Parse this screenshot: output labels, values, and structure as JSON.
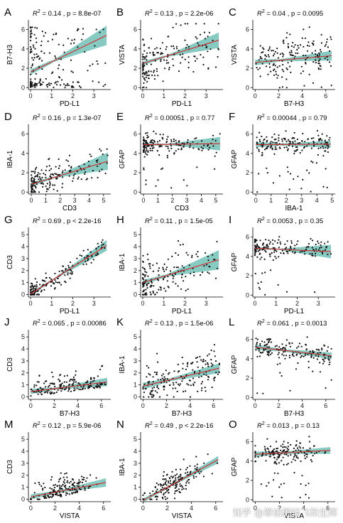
{
  "figure": {
    "fit_color": "#d62728",
    "band_color": "#5fb8ad",
    "point_color": "#111111",
    "watermark": "知乎 @翠柏肥轻飞和生辉"
  },
  "chart_data": [
    {
      "type": "scatter",
      "panel_letter": "A",
      "stat_text": ", p = 8.8e-07",
      "r2": "0.14",
      "xlabel": "PD-L1",
      "ylabel": "B7-H3",
      "xlim": [
        -0.1,
        3.8
      ],
      "ylim": [
        -0.2,
        7.0
      ],
      "xticks": [
        0,
        1,
        2,
        3
      ],
      "yticks": [
        0,
        2,
        4,
        6
      ],
      "fit": {
        "x": [
          0,
          3.6
        ],
        "y": [
          1.6,
          5.4
        ],
        "band_start": 0.2,
        "band_end": 1.0
      },
      "cloud": {
        "n": 170,
        "x_max": 3.6,
        "x_shape": "skew",
        "y_mode": "wide",
        "y_low": 0,
        "y_high": 6.6,
        "seed": 11
      }
    },
    {
      "type": "scatter",
      "panel_letter": "B",
      "stat_text": ", p = 2.2e-06",
      "r2": "0.13",
      "xlabel": "PD-L1",
      "ylabel": "VISTA",
      "xlim": [
        -0.1,
        3.8
      ],
      "ylim": [
        -0.2,
        7.0
      ],
      "xticks": [
        0,
        1,
        2,
        3
      ],
      "yticks": [
        0,
        2,
        4,
        6
      ],
      "fit": {
        "x": [
          0,
          3.6
        ],
        "y": [
          2.5,
          4.9
        ],
        "band_start": 0.15,
        "band_end": 0.8
      },
      "cloud": {
        "n": 170,
        "x_max": 3.6,
        "x_shape": "skew",
        "y_mode": "fit",
        "y_low": 0,
        "y_high": 6.6,
        "sd": 1.2,
        "seed": 23
      }
    },
    {
      "type": "scatter",
      "panel_letter": "C",
      "stat_text": ", p = 0.0095",
      "r2": "0.04",
      "xlabel": "B7-H3",
      "ylabel": "VISTA",
      "xlim": [
        -0.2,
        6.8
      ],
      "ylim": [
        -0.2,
        7.0
      ],
      "xticks": [
        0,
        2,
        4,
        6
      ],
      "yticks": [
        0,
        2,
        4,
        6
      ],
      "fit": {
        "x": [
          0,
          6.5
        ],
        "y": [
          2.6,
          3.3
        ],
        "band_start": 0.2,
        "band_end": 0.5
      },
      "cloud": {
        "n": 170,
        "x_max": 6.5,
        "x_shape": "uniform",
        "y_mode": "fit",
        "y_low": 0,
        "y_high": 6.6,
        "sd": 1.3,
        "seed": 37
      }
    },
    {
      "type": "scatter",
      "panel_letter": "D",
      "stat_text": ", p = 1.3e-07",
      "r2": "0.16",
      "xlabel": "CD3",
      "ylabel": "IBA-1",
      "xlim": [
        -0.2,
        5.5
      ],
      "ylim": [
        -0.2,
        7.0
      ],
      "xticks": [
        0,
        1,
        2,
        3,
        4,
        5
      ],
      "yticks": [
        0,
        2,
        4,
        6
      ],
      "fit": {
        "x": [
          0,
          5.3
        ],
        "y": [
          0.8,
          3.2
        ],
        "band_start": 0.15,
        "band_end": 0.9
      },
      "cloud": {
        "n": 170,
        "x_max": 5.3,
        "x_shape": "skew",
        "y_mode": "fit",
        "y_low": 0,
        "y_high": 6.6,
        "sd": 0.8,
        "seed": 41
      }
    },
    {
      "type": "scatter",
      "panel_letter": "E",
      "stat_text": ", p = 0.77",
      "r2": "0.00051",
      "xlabel": "CD3",
      "ylabel": "GFAP",
      "xlim": [
        -0.2,
        5.5
      ],
      "ylim": [
        -0.2,
        7.0
      ],
      "xticks": [
        0,
        1,
        2,
        3,
        4,
        5
      ],
      "yticks": [
        0,
        2,
        4,
        6
      ],
      "fit": {
        "x": [
          0,
          5.3
        ],
        "y": [
          4.9,
          5.0
        ],
        "band_start": 0.1,
        "band_end": 0.7
      },
      "cloud": {
        "n": 170,
        "x_max": 5.3,
        "x_shape": "skew",
        "y_mode": "fit",
        "y_low": 0,
        "y_high": 6.6,
        "sd": 0.55,
        "outliers": 0.08,
        "seed": 53
      }
    },
    {
      "type": "scatter",
      "panel_letter": "F",
      "stat_text": ", p = 0.79",
      "r2": "0.00044",
      "xlabel": "IBA-1",
      "ylabel": "GFAP",
      "xlim": [
        -0.2,
        5.2
      ],
      "ylim": [
        -0.2,
        7.0
      ],
      "xticks": [
        0,
        1,
        2,
        3,
        4,
        5
      ],
      "yticks": [
        0,
        2,
        4,
        6
      ],
      "fit": {
        "x": [
          0,
          4.9
        ],
        "y": [
          4.9,
          4.95
        ],
        "band_start": 0.2,
        "band_end": 0.35
      },
      "cloud": {
        "n": 170,
        "x_max": 4.9,
        "x_shape": "uniform",
        "y_mode": "fit",
        "y_low": 0,
        "y_high": 6.6,
        "sd": 0.55,
        "outliers": 0.08,
        "seed": 67
      }
    },
    {
      "type": "scatter",
      "panel_letter": "G",
      "stat_text": ", p < 2.2e-16",
      "r2": "0.69",
      "xlabel": "PD-L1",
      "ylabel": "CD3",
      "xlim": [
        -0.1,
        3.8
      ],
      "ylim": [
        -0.2,
        5.6
      ],
      "xticks": [
        0,
        1,
        2,
        3
      ],
      "yticks": [
        0,
        1,
        2,
        3,
        4,
        5
      ],
      "fit": {
        "x": [
          0,
          3.6
        ],
        "y": [
          0.05,
          4.1
        ],
        "band_start": 0.1,
        "band_end": 0.45
      },
      "cloud": {
        "n": 170,
        "x_max": 3.6,
        "x_shape": "skew",
        "y_mode": "fit",
        "y_low": 0,
        "y_high": 5.3,
        "sd": 0.45,
        "seed": 71
      }
    },
    {
      "type": "scatter",
      "panel_letter": "H",
      "stat_text": ", p = 1.5e-05",
      "r2": "0.11",
      "xlabel": "PD-L1",
      "ylabel": "IBA-1",
      "xlim": [
        -0.1,
        3.8
      ],
      "ylim": [
        -0.2,
        5.6
      ],
      "xticks": [
        0,
        1,
        2,
        3
      ],
      "yticks": [
        0,
        1,
        2,
        3,
        4,
        5
      ],
      "fit": {
        "x": [
          0,
          3.6
        ],
        "y": [
          1.0,
          2.9
        ],
        "band_start": 0.15,
        "band_end": 0.8
      },
      "cloud": {
        "n": 170,
        "x_max": 3.6,
        "x_shape": "skew",
        "y_mode": "fit",
        "y_low": 0,
        "y_high": 5.3,
        "sd": 0.9,
        "seed": 83
      }
    },
    {
      "type": "scatter",
      "panel_letter": "I",
      "stat_text": ", p = 0.35",
      "r2": "0.0053",
      "xlabel": "PD-L1",
      "ylabel": "GFAP",
      "xlim": [
        -0.1,
        3.8
      ],
      "ylim": [
        -0.2,
        7.0
      ],
      "xticks": [
        0,
        1,
        2,
        3
      ],
      "yticks": [
        0,
        2,
        4,
        6
      ],
      "fit": {
        "x": [
          0,
          3.6
        ],
        "y": [
          4.85,
          4.5
        ],
        "band_start": 0.1,
        "band_end": 0.7
      },
      "cloud": {
        "n": 170,
        "x_max": 3.6,
        "x_shape": "skew",
        "y_mode": "fit",
        "y_low": 0,
        "y_high": 6.6,
        "sd": 0.55,
        "outliers": 0.08,
        "seed": 97
      }
    },
    {
      "type": "scatter",
      "panel_letter": "J",
      "stat_text": ", p = 0.00086",
      "r2": "0.065",
      "xlabel": "B7-H3",
      "ylabel": "CD3",
      "xlim": [
        -0.2,
        6.8
      ],
      "ylim": [
        -0.2,
        5.6
      ],
      "xticks": [
        0,
        2,
        4,
        6
      ],
      "yticks": [
        0,
        1,
        2,
        3,
        4,
        5
      ],
      "fit": {
        "x": [
          0,
          6.5
        ],
        "y": [
          0.45,
          1.25
        ],
        "band_start": 0.15,
        "band_end": 0.35
      },
      "cloud": {
        "n": 170,
        "x_max": 6.5,
        "x_shape": "uniform",
        "y_mode": "lowskew",
        "y_low": 0,
        "y_high": 5.3,
        "sd": 0.7,
        "seed": 101
      }
    },
    {
      "type": "scatter",
      "panel_letter": "K",
      "stat_text": ", p = 1.5e-06",
      "r2": "0.13",
      "xlabel": "B7-H3",
      "ylabel": "IBA-1",
      "xlim": [
        -0.2,
        6.8
      ],
      "ylim": [
        -0.2,
        5.6
      ],
      "xticks": [
        0,
        2,
        4,
        6
      ],
      "yticks": [
        0,
        1,
        2,
        3,
        4,
        5
      ],
      "fit": {
        "x": [
          0,
          6.5
        ],
        "y": [
          0.9,
          2.4
        ],
        "band_start": 0.2,
        "band_end": 0.4
      },
      "cloud": {
        "n": 170,
        "x_max": 6.5,
        "x_shape": "uniform",
        "y_mode": "fit",
        "y_low": 0,
        "y_high": 5.3,
        "sd": 0.85,
        "seed": 113
      }
    },
    {
      "type": "scatter",
      "panel_letter": "L",
      "stat_text": ", p = 0.0013",
      "r2": "0.061",
      "xlabel": "B7-H3",
      "ylabel": "GFAP",
      "xlim": [
        -0.2,
        6.8
      ],
      "ylim": [
        -0.2,
        7.0
      ],
      "xticks": [
        0,
        2,
        4,
        6
      ],
      "yticks": [
        0,
        2,
        4,
        6
      ],
      "fit": {
        "x": [
          0,
          6.5
        ],
        "y": [
          5.2,
          4.3
        ],
        "band_start": 0.2,
        "band_end": 0.35
      },
      "cloud": {
        "n": 170,
        "x_max": 6.5,
        "x_shape": "uniform",
        "y_mode": "fit",
        "y_low": 0,
        "y_high": 6.6,
        "sd": 0.55,
        "outliers": 0.07,
        "seed": 127
      }
    },
    {
      "type": "scatter",
      "panel_letter": "M",
      "stat_text": ", p = 5.9e-06",
      "r2": "0.12",
      "xlabel": "VISTA",
      "ylabel": "CD3",
      "xlim": [
        -0.2,
        6.6
      ],
      "ylim": [
        -0.2,
        5.6
      ],
      "xticks": [
        0,
        2,
        4,
        6
      ],
      "yticks": [
        0,
        1,
        2,
        3,
        4,
        5
      ],
      "fit": {
        "x": [
          0,
          6.2
        ],
        "y": [
          0.2,
          1.4
        ],
        "band_start": 0.15,
        "band_end": 0.35
      },
      "cloud": {
        "n": 170,
        "x_max": 6.2,
        "x_shape": "mid",
        "y_mode": "lowskew",
        "y_low": 0,
        "y_high": 5.3,
        "sd": 0.75,
        "seed": 131
      }
    },
    {
      "type": "scatter",
      "panel_letter": "N",
      "stat_text": ", p < 2.2e-16",
      "r2": "0.49",
      "xlabel": "VISTA",
      "ylabel": "IBA-1",
      "xlim": [
        -0.2,
        6.6
      ],
      "ylim": [
        -0.2,
        5.6
      ],
      "xticks": [
        0,
        2,
        4,
        6
      ],
      "yticks": [
        0,
        1,
        2,
        3,
        4,
        5
      ],
      "fit": {
        "x": [
          0,
          6.2
        ],
        "y": [
          -0.1,
          3.3
        ],
        "band_start": 0.12,
        "band_end": 0.3
      },
      "cloud": {
        "n": 170,
        "x_max": 6.2,
        "x_shape": "mid",
        "y_mode": "fit",
        "y_low": 0,
        "y_high": 5.3,
        "sd": 0.55,
        "seed": 149
      }
    },
    {
      "type": "scatter",
      "panel_letter": "O",
      "stat_text": ", p = 0.13",
      "r2": "0.013",
      "xlabel": "VISTA",
      "ylabel": "GFAP",
      "xlim": [
        -0.2,
        6.6
      ],
      "ylim": [
        -0.2,
        7.0
      ],
      "xticks": [
        0,
        2,
        4,
        6
      ],
      "yticks": [
        0,
        2,
        4,
        6
      ],
      "fit": {
        "x": [
          0,
          6.2
        ],
        "y": [
          4.7,
          5.1
        ],
        "band_start": 0.2,
        "band_end": 0.35
      },
      "cloud": {
        "n": 170,
        "x_max": 6.2,
        "x_shape": "mid",
        "y_mode": "fit",
        "y_low": 0,
        "y_high": 6.6,
        "sd": 0.55,
        "outliers": 0.08,
        "seed": 151
      }
    }
  ]
}
